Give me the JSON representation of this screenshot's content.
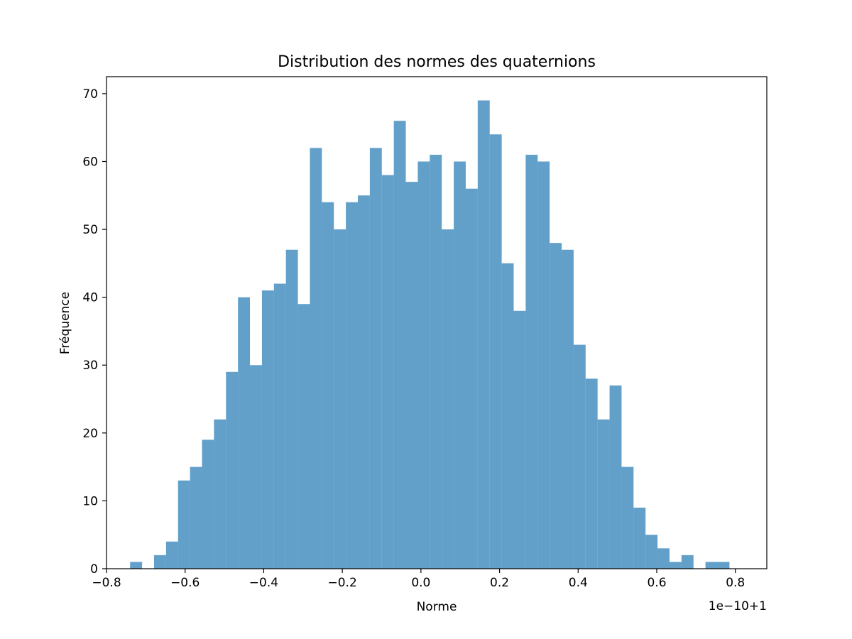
{
  "chart_data": {
    "type": "bar",
    "title": "Distribution des normes des quaternions",
    "xlabel": "Norme",
    "ylabel": "Fréquence",
    "offset_label": "1e−10+1",
    "xlim": [
      -0.8,
      0.88
    ],
    "ylim": [
      0,
      72.5
    ],
    "bin_start": -0.74,
    "bin_width": 0.0305,
    "counts": [
      1,
      0,
      2,
      4,
      13,
      15,
      19,
      22,
      29,
      40,
      30,
      41,
      42,
      47,
      39,
      62,
      54,
      50,
      54,
      55,
      62,
      58,
      66,
      57,
      60,
      61,
      50,
      60,
      56,
      69,
      64,
      45,
      38,
      61,
      60,
      48,
      47,
      33,
      28,
      22,
      27,
      15,
      9,
      5,
      3,
      1,
      2,
      0,
      1,
      1
    ],
    "xticks": [
      -0.8,
      -0.6,
      -0.4,
      -0.2,
      0.0,
      0.2,
      0.4,
      0.6,
      0.8
    ],
    "xtick_labels": [
      "−0.8",
      "−0.6",
      "−0.4",
      "−0.2",
      "0.0",
      "0.2",
      "0.4",
      "0.6",
      "0.8"
    ],
    "yticks": [
      0,
      10,
      20,
      30,
      40,
      50,
      60,
      70
    ],
    "ytick_labels": [
      "0",
      "10",
      "20",
      "30",
      "40",
      "50",
      "60",
      "70"
    ],
    "bar_color": "#1f77b4",
    "bar_opacity": 0.7,
    "grid": false,
    "legend": false
  }
}
